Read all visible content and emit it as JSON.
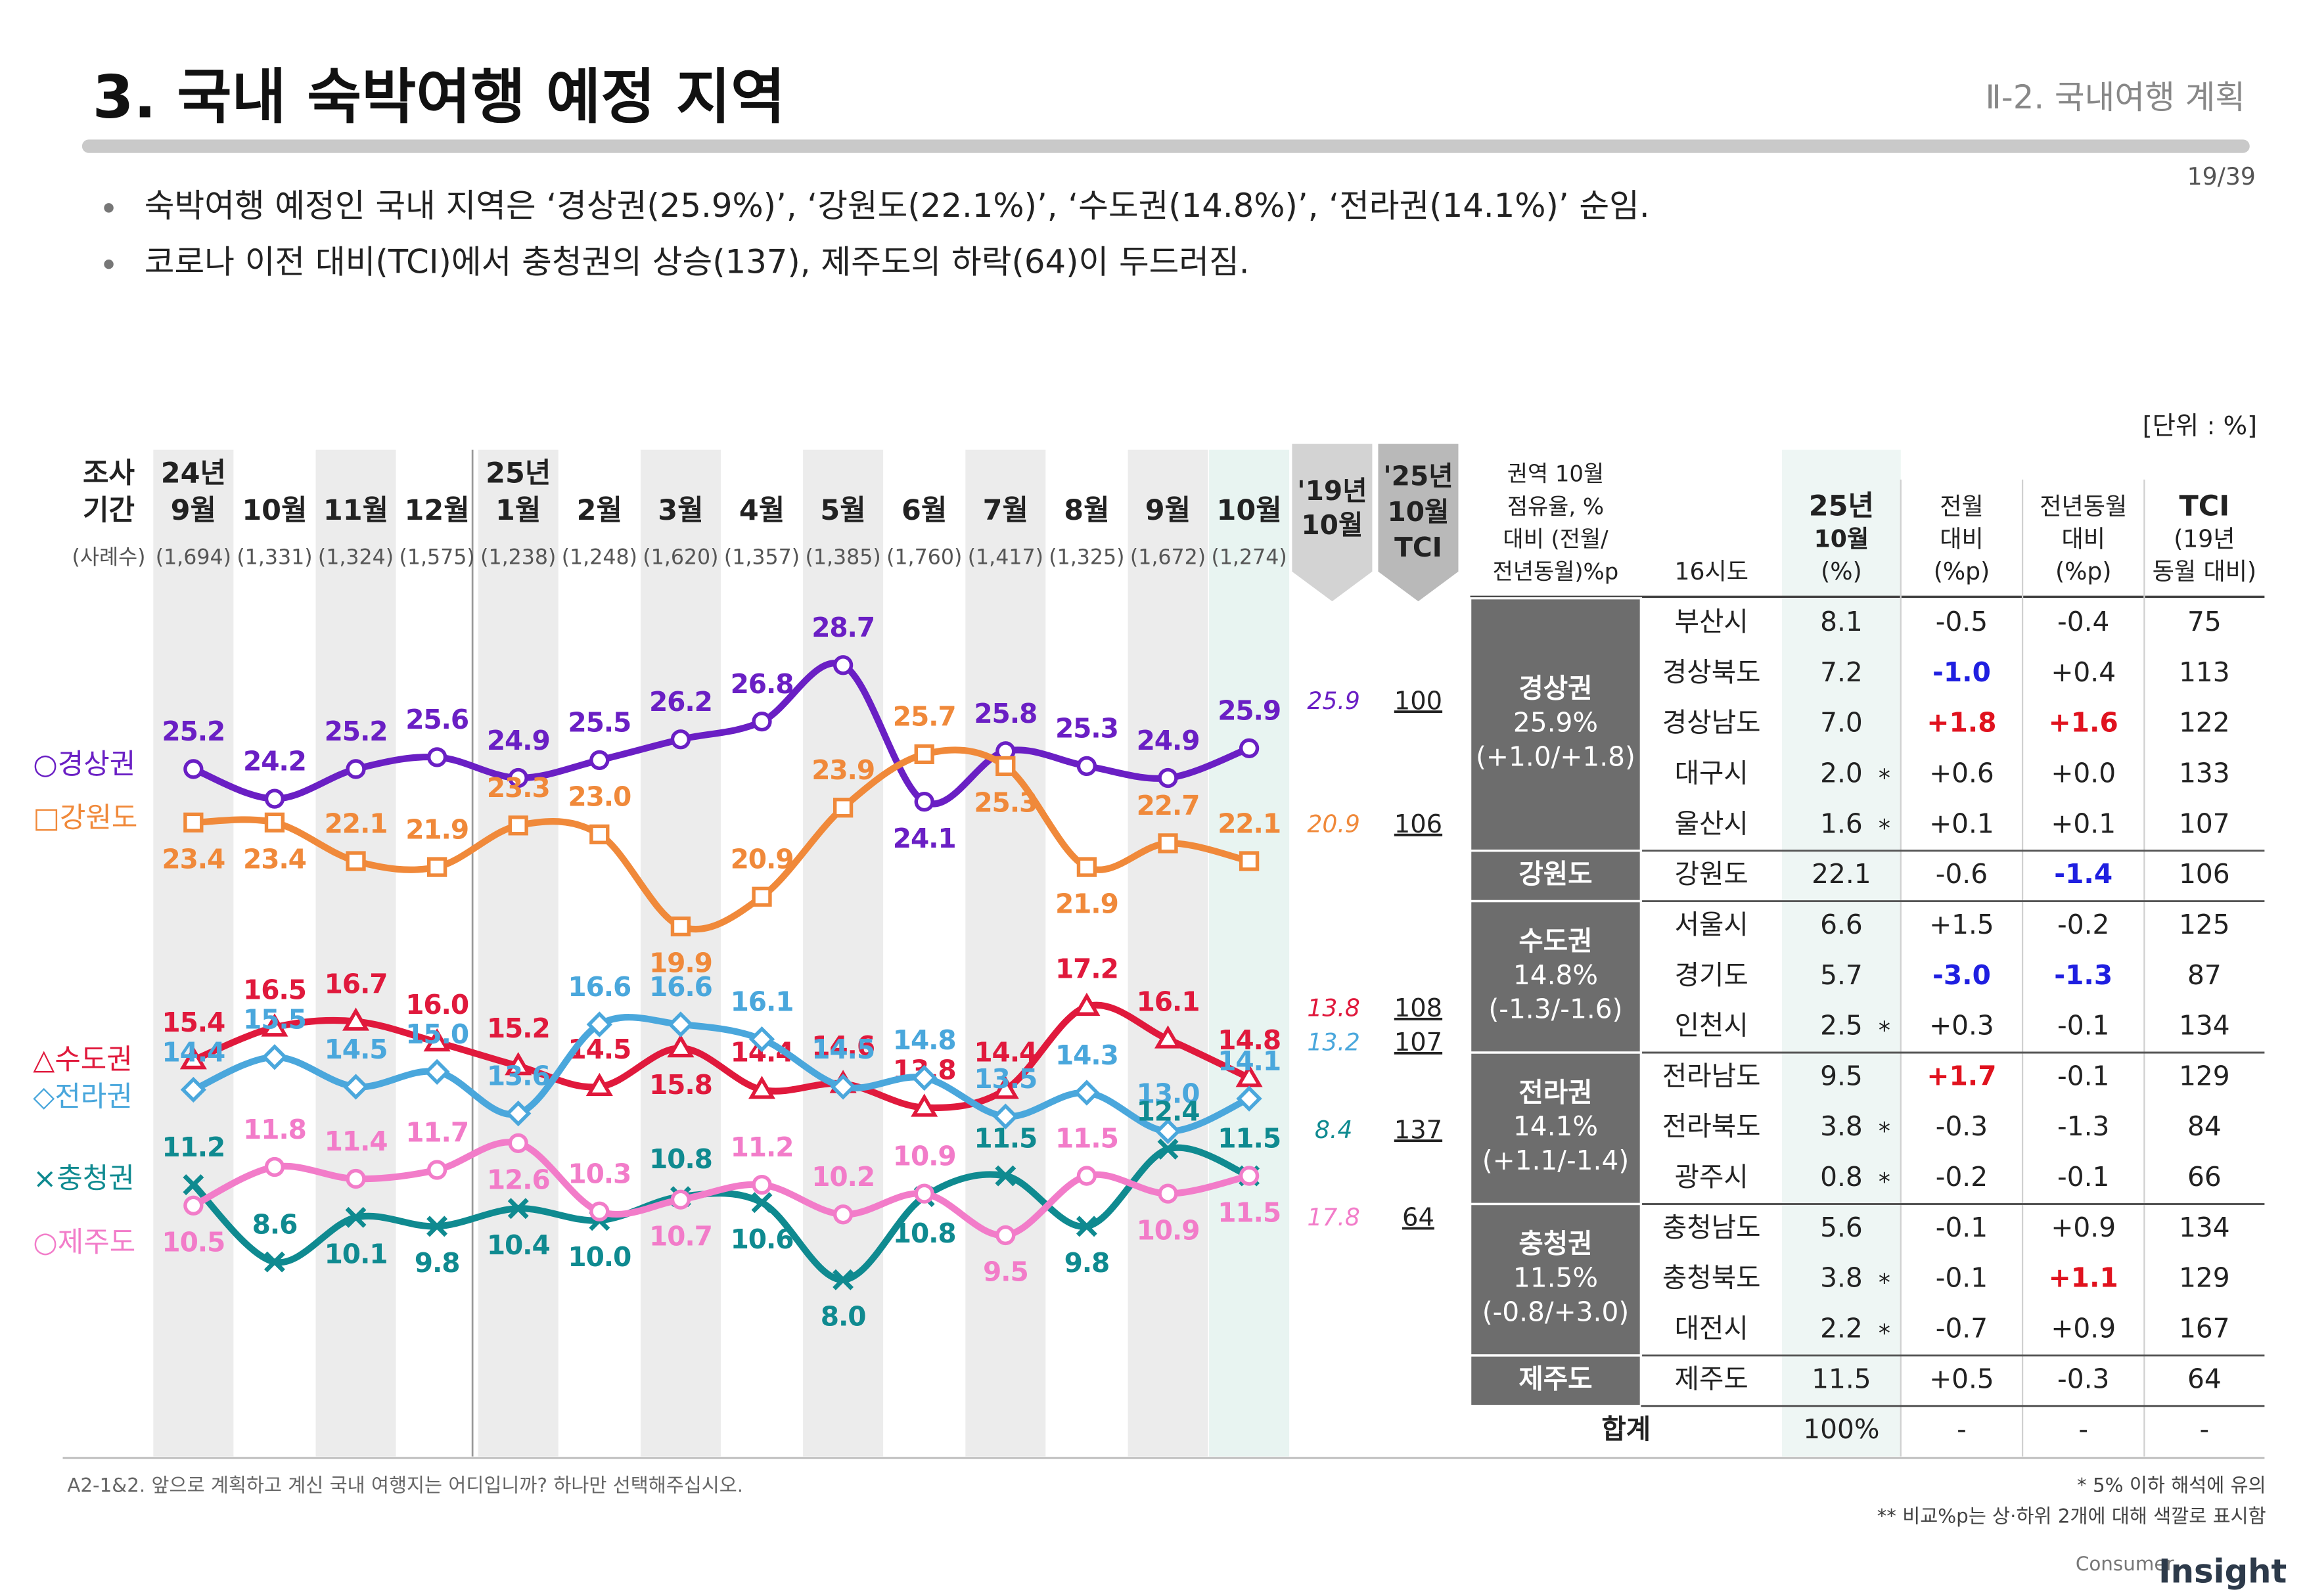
{
  "header": {
    "title": "3. 국내 숙박여행 예정 지역",
    "section": "Ⅱ-2. 국내여행 계획",
    "page": "19/39"
  },
  "bullets": [
    "숙박여행 예정인 국내 지역은 ‘경상권(25.9%)’, ‘강원도(22.1%)’, ‘수도권(14.8%)’, ‘전라권(14.1%)’ 순임.",
    "코로나 이전 대비(TCI)에서 충청권의 상승(137), 제주도의 하락(64)이 두드러짐."
  ],
  "unit": "[단위 : %]",
  "chart_data": {
    "type": "line",
    "period_header": [
      "조사",
      "기간"
    ],
    "sample_header": "(사례수)",
    "categories": [
      [
        "24년",
        "9월"
      ],
      [
        "10월"
      ],
      [
        "11월"
      ],
      [
        "12월"
      ],
      [
        "25년",
        "1월"
      ],
      [
        "2월"
      ],
      [
        "3월"
      ],
      [
        "4월"
      ],
      [
        "5월"
      ],
      [
        "6월"
      ],
      [
        "7월"
      ],
      [
        "8월"
      ],
      [
        "9월"
      ],
      [
        "10월"
      ]
    ],
    "sample_sizes": [
      "(1,694)",
      "(1,331)",
      "(1,324)",
      "(1,575)",
      "(1,238)",
      "(1,248)",
      "(1,620)",
      "(1,357)",
      "(1,385)",
      "(1,760)",
      "(1,417)",
      "(1,325)",
      "(1,672)",
      "(1,274)"
    ],
    "base_header": [
      "'19년",
      "10월"
    ],
    "tci_header": [
      "'25년",
      "10월",
      "TCI"
    ],
    "series": [
      {
        "name": "○경상권",
        "marker": "circle",
        "color": "#6a1fc4",
        "values": [
          25.2,
          24.2,
          25.2,
          25.6,
          24.9,
          25.5,
          26.2,
          26.8,
          28.7,
          24.1,
          25.8,
          25.3,
          24.9,
          25.9
        ],
        "value_labels": [
          "25.2",
          "24.2",
          "25.2",
          "25.6",
          "24.9",
          "25.5",
          "26.2",
          "26.8",
          "28.7",
          "24.1",
          "25.8",
          "25.3",
          "24.9",
          "25.9"
        ],
        "base_2019": 25.9,
        "tci": 100
      },
      {
        "name": "□강원도",
        "marker": "square",
        "color": "#f0893a",
        "values": [
          23.4,
          23.4,
          22.1,
          21.9,
          23.3,
          23.0,
          19.9,
          20.9,
          23.9,
          25.7,
          25.3,
          21.9,
          22.7,
          22.1
        ],
        "value_labels": [
          "23.4",
          "23.4",
          "22.1",
          "21.9",
          "23.3",
          "23.0",
          "19.9",
          "20.9",
          "23.9",
          "25.7",
          "25.3",
          "21.9",
          "22.7",
          "22.1"
        ],
        "base_2019": 20.9,
        "tci": 106
      },
      {
        "name": "△수도권",
        "marker": "triangle",
        "color": "#e0193c",
        "values": [
          15.4,
          16.5,
          16.7,
          16.0,
          15.2,
          14.5,
          15.8,
          14.4,
          14.6,
          13.8,
          14.4,
          17.2,
          16.1,
          14.8
        ],
        "value_labels": [
          "15.4",
          "16.5",
          "16.7",
          "16.0",
          "15.2",
          "14.5",
          "15.8",
          "14.4",
          "14.6",
          "13.8",
          "14.4",
          "17.2",
          "16.1",
          "14.8"
        ],
        "base_2019": 13.8,
        "tci": 108
      },
      {
        "name": "◇전라권",
        "marker": "diamond",
        "color": "#4aa7dc",
        "values": [
          14.4,
          15.5,
          14.5,
          15.0,
          13.6,
          16.6,
          16.6,
          16.1,
          14.5,
          14.8,
          13.5,
          14.3,
          13.0,
          14.1
        ],
        "value_labels": [
          "14.4",
          "15.5",
          "14.5",
          "15.0",
          "13.6",
          "16.6",
          "16.6",
          "16.1",
          "14.5",
          "14.8",
          "13.5",
          "14.3",
          "13.0",
          "14.1"
        ],
        "base_2019": 13.2,
        "tci": 107
      },
      {
        "name": "×충청권",
        "marker": "cross",
        "color": "#0f8a90",
        "values": [
          11.2,
          8.6,
          10.1,
          9.8,
          10.4,
          10.0,
          10.8,
          10.6,
          8.0,
          10.8,
          11.5,
          9.8,
          12.4,
          11.5
        ],
        "value_labels": [
          "11.2",
          "8.6",
          "10.1",
          "9.8",
          "10.4",
          "10.0",
          "10.8",
          "10.6",
          "8.0",
          "10.8",
          "11.5",
          "9.8",
          "12.4",
          "11.5"
        ],
        "base_2019": 8.4,
        "tci": 137
      },
      {
        "name": "○제주도",
        "marker": "circle",
        "color": "#f27cc9",
        "values": [
          10.5,
          11.8,
          11.4,
          11.7,
          12.6,
          10.3,
          10.7,
          11.2,
          10.2,
          10.9,
          9.5,
          11.5,
          10.9,
          11.5
        ],
        "value_labels": [
          "10.5",
          "11.8",
          "11.4",
          "11.7",
          "12.6",
          "10.3",
          "10.7",
          "11.2",
          "10.2",
          "10.9",
          "9.5",
          "11.5",
          "10.9",
          "11.5"
        ],
        "base_2019": 17.8,
        "tci": 64
      }
    ]
  },
  "table": {
    "header": [
      [
        "권역 10월",
        "점유율, %",
        "대비 (전월/",
        "전년동월)%p"
      ],
      [
        "16시도"
      ],
      [
        "25년",
        "10월",
        "(%)"
      ],
      [
        "전월",
        "대비",
        "(%p)"
      ],
      [
        "전년동월",
        "대비",
        "(%p)"
      ],
      [
        "TCI",
        "(19년",
        "동월 대비)"
      ]
    ],
    "groups": [
      {
        "lines": [
          "경상권",
          "25.9%",
          "(+1.0/+1.8)"
        ],
        "rows": [
          {
            "name": "부산시",
            "share": "8.1",
            "mom": "-0.5",
            "yoy": "-0.4",
            "tci": "75"
          },
          {
            "name": "경상북도",
            "share": "7.2",
            "mom": "-1.0",
            "yoy": "+0.4",
            "tci": "113",
            "mom_color": "#1f1fe0"
          },
          {
            "name": "경상남도",
            "share": "7.0",
            "mom": "+1.8",
            "yoy": "+1.6",
            "tci": "122",
            "mom_color": "#e0121e",
            "yoy_color": "#e0121e"
          },
          {
            "name": "대구시",
            "share": "2.0",
            "note": "*",
            "mom": "+0.6",
            "yoy": "+0.0",
            "tci": "133"
          },
          {
            "name": "울산시",
            "share": "1.6",
            "note": "*",
            "mom": "+0.1",
            "yoy": "+0.1",
            "tci": "107"
          }
        ]
      },
      {
        "lines": [
          "강원도"
        ],
        "rows": [
          {
            "name": "강원도",
            "share": "22.1",
            "mom": "-0.6",
            "yoy": "-1.4",
            "tci": "106",
            "yoy_color": "#1f1fe0"
          }
        ]
      },
      {
        "lines": [
          "수도권",
          "14.8%",
          "(-1.3/-1.6)"
        ],
        "rows": [
          {
            "name": "서울시",
            "share": "6.6",
            "mom": "+1.5",
            "yoy": "-0.2",
            "tci": "125"
          },
          {
            "name": "경기도",
            "share": "5.7",
            "mom": "-3.0",
            "yoy": "-1.3",
            "tci": "87",
            "mom_color": "#1f1fe0",
            "yoy_color": "#1f1fe0"
          },
          {
            "name": "인천시",
            "share": "2.5",
            "note": "*",
            "mom": "+0.3",
            "yoy": "-0.1",
            "tci": "134"
          }
        ]
      },
      {
        "lines": [
          "전라권",
          "14.1%",
          "(+1.1/-1.4)"
        ],
        "rows": [
          {
            "name": "전라남도",
            "share": "9.5",
            "mom": "+1.7",
            "yoy": "-0.1",
            "tci": "129",
            "mom_color": "#e0121e"
          },
          {
            "name": "전라북도",
            "share": "3.8",
            "note": "*",
            "mom": "-0.3",
            "yoy": "-1.3",
            "tci": "84"
          },
          {
            "name": "광주시",
            "share": "0.8",
            "note": "*",
            "mom": "-0.2",
            "yoy": "-0.1",
            "tci": "66"
          }
        ]
      },
      {
        "lines": [
          "충청권",
          "11.5%",
          "(-0.8/+3.0)"
        ],
        "rows": [
          {
            "name": "충청남도",
            "share": "5.6",
            "mom": "-0.1",
            "yoy": "+0.9",
            "tci": "134"
          },
          {
            "name": "충청북도",
            "share": "3.8",
            "note": "*",
            "mom": "-0.1",
            "yoy": "+1.1",
            "tci": "129",
            "yoy_color": "#e0121e"
          },
          {
            "name": "대전시",
            "share": "2.2",
            "note": "*",
            "mom": "-0.7",
            "yoy": "+0.9",
            "tci": "167"
          }
        ]
      },
      {
        "lines": [
          "제주도"
        ],
        "rows": [
          {
            "name": "제주도",
            "share": "11.5",
            "mom": "+0.5",
            "yoy": "-0.3",
            "tci": "64"
          }
        ]
      }
    ],
    "total": {
      "label": "합계",
      "share": "100%",
      "mom": "-",
      "yoy": "-",
      "tci": "-"
    }
  },
  "footer": {
    "question": "A2-1&2. 앞으로 계획하고 계신 국내 여행지는 어디입니까? 하나만 선택해주십시오.",
    "notes": [
      "* 5% 이하 해석에 유의",
      "** 비교%p는 상·하위 2개에 대해 색깔로 표시함"
    ],
    "logo": [
      "Consumer",
      "Insight"
    ]
  }
}
